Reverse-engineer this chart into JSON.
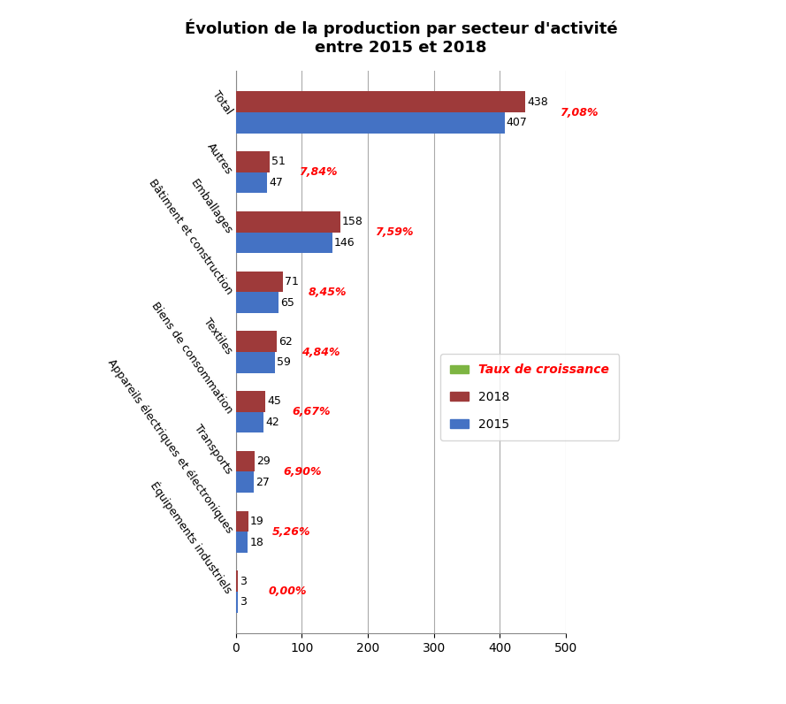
{
  "title": "Évolution de la production par secteur d'activité\nentre 2015 et 2018",
  "categories": [
    "Total",
    "Autres",
    "Emballages",
    "Bâtiment et construction",
    "Textiles",
    "Biens de consommation",
    "Transports",
    "Appareils électriques et électroniques",
    "Équipements industriels"
  ],
  "values_2018": [
    438,
    51,
    158,
    71,
    62,
    45,
    29,
    19,
    3
  ],
  "values_2015": [
    407,
    47,
    146,
    65,
    59,
    42,
    27,
    18,
    3
  ],
  "growth_rates": [
    "7,08%",
    "7,84%",
    "7,59%",
    "8,45%",
    "4,84%",
    "6,67%",
    "6,90%",
    "5,26%",
    "0,00%"
  ],
  "growth_x_positions": [
    490,
    95,
    210,
    110,
    100,
    85,
    72,
    55,
    50
  ],
  "color_2018": "#9E3A3A",
  "color_2015": "#4472C4",
  "color_growth": "#FF0000",
  "color_legend_growth": "#7DB542",
  "legend_labels": [
    "Taux de croissance",
    "2018",
    "2015"
  ],
  "xlim": [
    0,
    500
  ],
  "xticks": [
    0,
    100,
    200,
    300,
    400,
    500
  ],
  "background_color": "#FFFFFF",
  "title_fontsize": 13,
  "bar_height": 0.35,
  "grid_color": "#AAAAAA",
  "label_rotation": -55
}
